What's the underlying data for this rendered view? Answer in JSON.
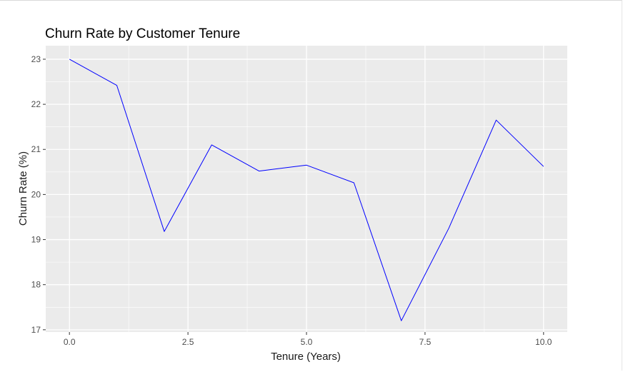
{
  "chart_data": {
    "type": "line",
    "title": "Churn Rate by Customer Tenure",
    "xlabel": "Tenure (Years)",
    "ylabel": "Churn Rate (%)",
    "x": [
      0,
      1,
      2,
      3,
      4,
      5,
      6,
      7,
      8,
      9,
      10
    ],
    "series": [
      {
        "values": [
          23.0,
          22.42,
          19.18,
          21.1,
          20.52,
          20.65,
          20.26,
          17.2,
          19.25,
          21.65,
          20.62
        ],
        "color": "#0000ff"
      }
    ],
    "xlim": [
      -0.5,
      10.5
    ],
    "ylim": [
      16.95,
      23.3
    ],
    "x_ticks": [
      0,
      2.5,
      5,
      7.5,
      10
    ],
    "x_tick_labels": [
      "0.0",
      "2.5",
      "5.0",
      "7.5",
      "10.0"
    ],
    "y_ticks": [
      17,
      18,
      19,
      20,
      21,
      22,
      23
    ],
    "y_tick_labels": [
      "17",
      "18",
      "19",
      "20",
      "21",
      "22",
      "23"
    ],
    "grid": true,
    "panel_background": "#ebebeb",
    "grid_color": "#ffffff"
  }
}
